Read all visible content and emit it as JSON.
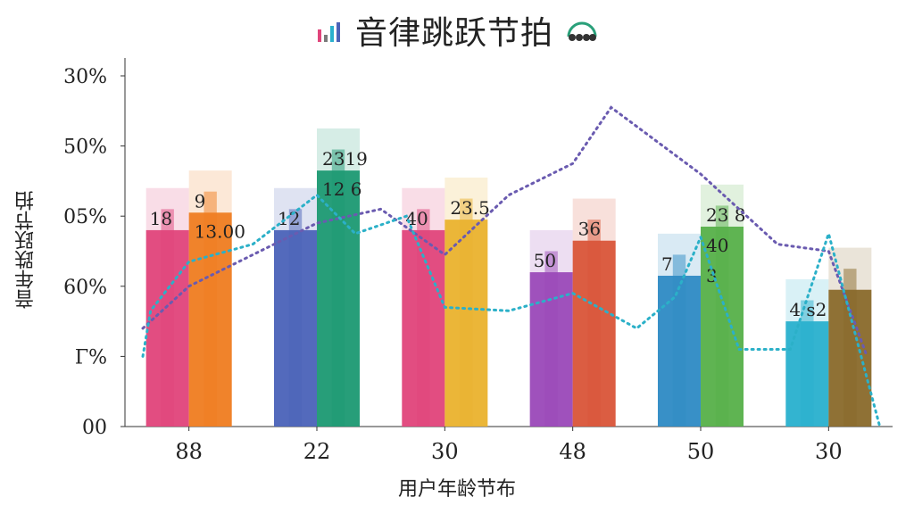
{
  "chart_data": {
    "type": "bar",
    "title": "音律跳跃节拍",
    "ylabel": "音年跌跃节拍",
    "xlabel": "用户年龄节布",
    "y_tick_labels": [
      "00",
      "Γ%",
      "60%",
      "05%",
      "50%",
      "30%"
    ],
    "categories": [
      "88",
      "22",
      "30",
      "48",
      "50",
      "30"
    ],
    "ylim": [
      0,
      100
    ],
    "series": [
      {
        "color": "#e0457b",
        "values": [
          56,
          56,
          56,
          44,
          43,
          30
        ]
      },
      {
        "color": "#ef7d22",
        "values": [
          61,
          73,
          59,
          53,
          57,
          39
        ]
      }
    ],
    "group_colors": [
      [
        "#e0457b",
        "#ef7d22"
      ],
      [
        "#4b63b8",
        "#1e9a73"
      ],
      [
        "#e0457b",
        "#eab22f"
      ],
      [
        "#9b49b8",
        "#d9553a"
      ],
      [
        "#2f8bc4",
        "#57b04a"
      ],
      [
        "#2ab0cd",
        "#8a6a2c"
      ]
    ],
    "bar_labels": [
      [
        "18",
        "9",
        "13.00"
      ],
      [
        "12",
        "2319",
        "12 6"
      ],
      [
        "40",
        "23.5"
      ],
      [
        "50",
        "36"
      ],
      [
        "7",
        "23 8",
        "40",
        "3"
      ],
      [
        "4 s2"
      ]
    ],
    "line_series": [
      {
        "name": "",
        "color": "#6a5bb0",
        "style": "dotted",
        "x": [
          -0.6,
          0,
          1,
          1.5,
          2,
          2.5,
          3,
          3.3,
          4,
          4.6,
          5,
          5.3
        ],
        "y": [
          28,
          40,
          58,
          62,
          49,
          66,
          75,
          91,
          72,
          52,
          50,
          20
        ]
      },
      {
        "name": "",
        "color": "#2bb0c8",
        "style": "dotted",
        "x": [
          -0.7,
          -0.3,
          0,
          0.5,
          1,
          1.3,
          1.7,
          2,
          2.5,
          3,
          3.5,
          3.8,
          4,
          4.3,
          4.7,
          5,
          5.4
        ],
        "y": [
          20,
          33,
          47,
          52,
          66,
          55,
          60,
          34,
          33,
          38,
          28,
          37,
          54,
          22,
          22,
          55,
          0
        ]
      }
    ]
  }
}
